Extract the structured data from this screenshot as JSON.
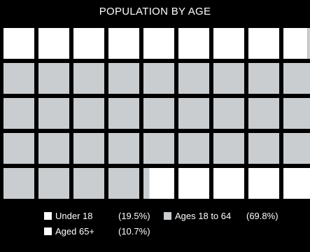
{
  "chart_data": {
    "type": "waffle",
    "title": "POPULATION BY AGE",
    "categories": [
      "Under 18",
      "Ages 18 to 64",
      "Aged 65+"
    ],
    "values": [
      19.5,
      69.8,
      10.7
    ],
    "percent_labels": [
      "(19.5%)",
      "(69.8%)",
      "(10.7%)"
    ],
    "colors": [
      "#ffffff",
      "#c9cdd0",
      "#ffffff"
    ],
    "legend_position": "bottom"
  }
}
